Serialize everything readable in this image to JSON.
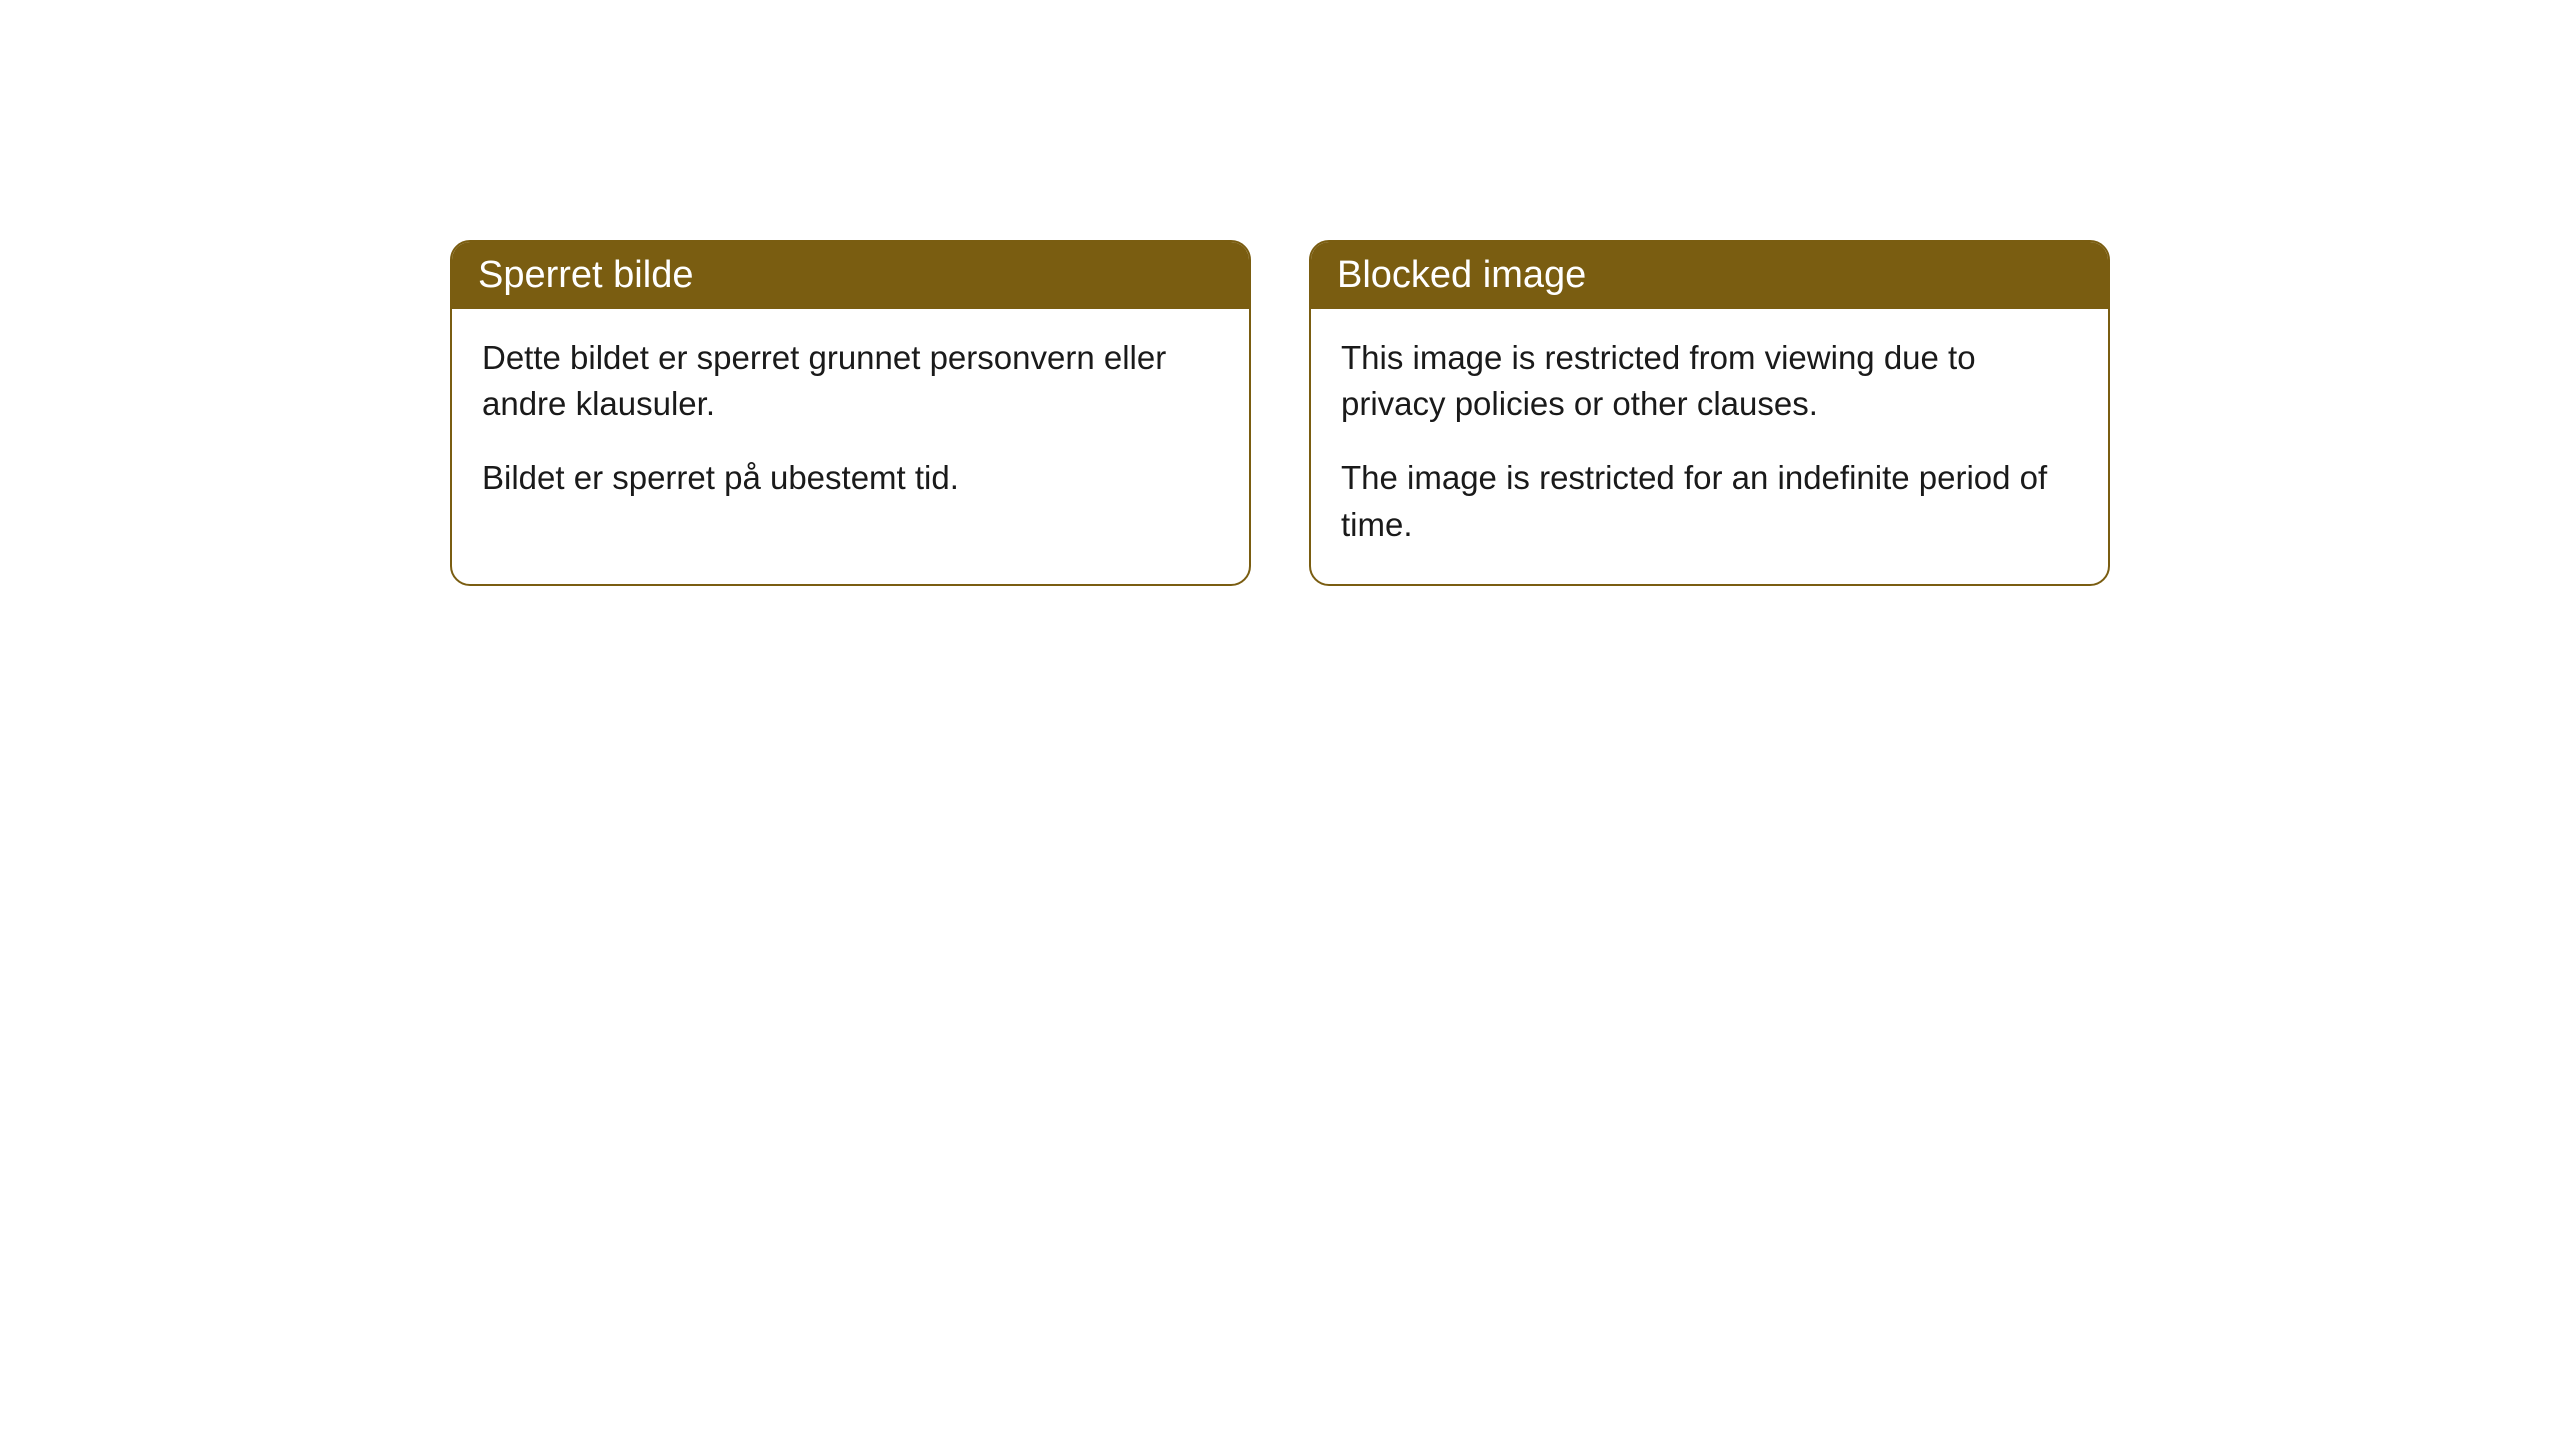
{
  "cards": [
    {
      "title": "Sperret bilde",
      "paragraph1": "Dette bildet er sperret grunnet personvern eller andre klausuler.",
      "paragraph2": "Bildet er sperret på ubestemt tid."
    },
    {
      "title": "Blocked image",
      "paragraph1": "This image is restricted from viewing due to privacy policies or other clauses.",
      "paragraph2": "The image is restricted for an indefinite period of time."
    }
  ],
  "styling": {
    "header_background_color": "#7a5d11",
    "header_text_color": "#ffffff",
    "card_border_color": "#7a5d11",
    "card_background_color": "#ffffff",
    "body_text_color": "#1a1a1a",
    "page_background_color": "#ffffff",
    "header_fontsize": 38,
    "body_fontsize": 33,
    "border_radius": 20
  }
}
